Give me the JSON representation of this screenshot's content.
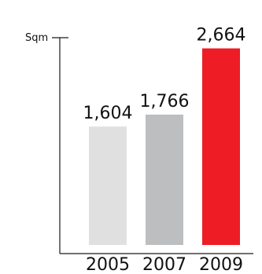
{
  "chart_data": {
    "type": "bar",
    "categories": [
      "2005",
      "2007",
      "2009"
    ],
    "values": [
      1604,
      1766,
      2664
    ],
    "value_labels": [
      "1,604",
      "1,766",
      "2,664"
    ],
    "ylabel": "Sqm",
    "ylim": [
      0,
      2800
    ],
    "grid": false,
    "legend": "none",
    "colors": [
      "#e0e0e0",
      "#bdbebf",
      "#ee1c25"
    ]
  }
}
